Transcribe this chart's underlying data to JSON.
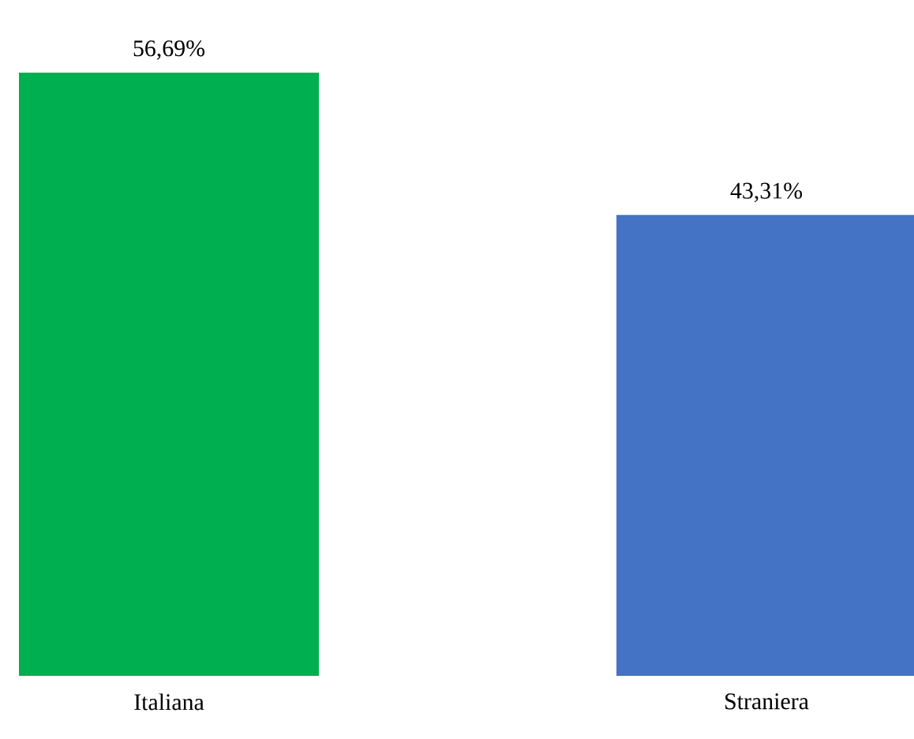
{
  "chart_data": {
    "type": "bar",
    "categories": [
      "Italiana",
      "Straniera"
    ],
    "values": [
      56.69,
      43.31
    ],
    "colors": [
      "#00b050",
      "#4472c4"
    ],
    "value_labels": [
      "56,69%",
      "43,31%"
    ]
  }
}
